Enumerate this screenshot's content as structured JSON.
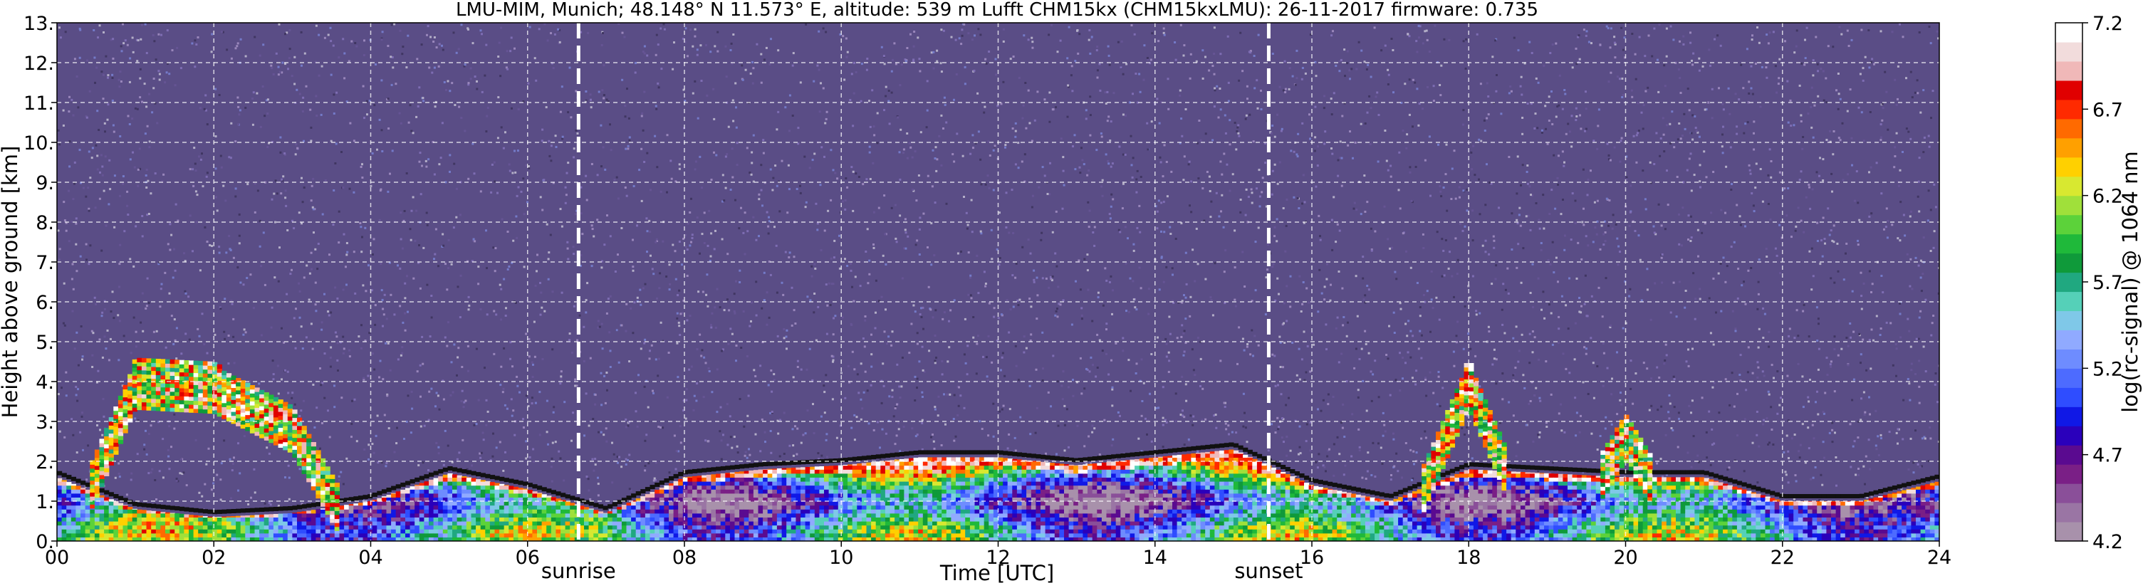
{
  "chart_data": {
    "type": "heatmap",
    "title": "LMU-MIM, Munich; 48.148° N 11.573° E, altitude: 539 m    Lufft CHM15kx (CHM15kxLMU): 26-11-2017    firmware: 0.735",
    "xlabel": "Time [UTC]",
    "ylabel": "Height above ground [km]",
    "colorbar_label": "log(rc-signal) @ 1064 nm",
    "xlim": [
      0,
      24
    ],
    "ylim": [
      0,
      13
    ],
    "x_ticks": [
      0,
      2,
      4,
      6,
      8,
      10,
      12,
      14,
      16,
      18,
      20,
      22,
      24
    ],
    "x_tick_labels": [
      "00",
      "02",
      "04",
      "06",
      "08",
      "10",
      "12",
      "14",
      "16",
      "18",
      "20",
      "22",
      "24"
    ],
    "y_ticks": [
      0,
      1,
      2,
      3,
      4,
      5,
      6,
      7,
      8,
      9,
      10,
      11,
      12,
      13
    ],
    "y_tick_labels": [
      "0.",
      "1.",
      "2.",
      "3.",
      "4.",
      "5.",
      "6.",
      "7.",
      "8.",
      "9.",
      "10.",
      "11.",
      "12.",
      "13."
    ],
    "grid": true,
    "colorbar": {
      "range": [
        4.2,
        7.2
      ],
      "ticks": [
        4.2,
        4.7,
        5.2,
        5.7,
        6.2,
        6.7,
        7.2
      ],
      "tick_labels": [
        "4.2",
        "4.7",
        "5.2",
        "5.7",
        "6.2",
        "6.7",
        "7.2"
      ],
      "colors": [
        "#a891ab",
        "#9a75a4",
        "#8a4f99",
        "#7a1f86",
        "#5a0a90",
        "#2a00bb",
        "#1018e6",
        "#2f4dff",
        "#4d6bff",
        "#6e8cff",
        "#90aaff",
        "#7fc8e8",
        "#55d0b8",
        "#20a880",
        "#0f9a3a",
        "#1fb93a",
        "#5cd23a",
        "#a0e03a",
        "#d8e830",
        "#ffd000",
        "#ffa000",
        "#ff6a00",
        "#ff2a00",
        "#e00000",
        "#f0b8b8",
        "#f2dcdc",
        "#ffffff"
      ]
    },
    "annotations": [
      {
        "label": "sunrise",
        "x": 6.65
      },
      {
        "label": "sunset",
        "x": 15.45
      }
    ],
    "layers": [
      {
        "name": "boundary-layer",
        "x": [
          0,
          1,
          2,
          3,
          4,
          5,
          6,
          7,
          8,
          9,
          10,
          11,
          12,
          13,
          14,
          15,
          16,
          17,
          18,
          19,
          20,
          21,
          22,
          23,
          24
        ],
        "top": [
          1.6,
          0.8,
          0.6,
          0.7,
          1.0,
          1.7,
          1.3,
          0.7,
          1.6,
          1.8,
          1.9,
          2.1,
          2.1,
          1.9,
          2.1,
          2.3,
          1.4,
          1.0,
          1.8,
          1.7,
          1.6,
          1.6,
          1.0,
          1.0,
          1.5
        ]
      },
      {
        "name": "cloud-layer",
        "x": [
          0,
          1,
          2,
          3,
          4,
          5,
          6,
          7,
          8,
          9,
          10,
          11,
          12,
          13,
          14,
          15,
          16,
          17,
          18,
          19,
          20,
          21,
          22,
          23,
          24
        ],
        "top": [
          0,
          4.5,
          4.4,
          3.4,
          0,
          0,
          0,
          0,
          0,
          0,
          0,
          0,
          0,
          0,
          0,
          0,
          0,
          0,
          4.5,
          0,
          3.2,
          0,
          0,
          0,
          0
        ]
      }
    ]
  }
}
